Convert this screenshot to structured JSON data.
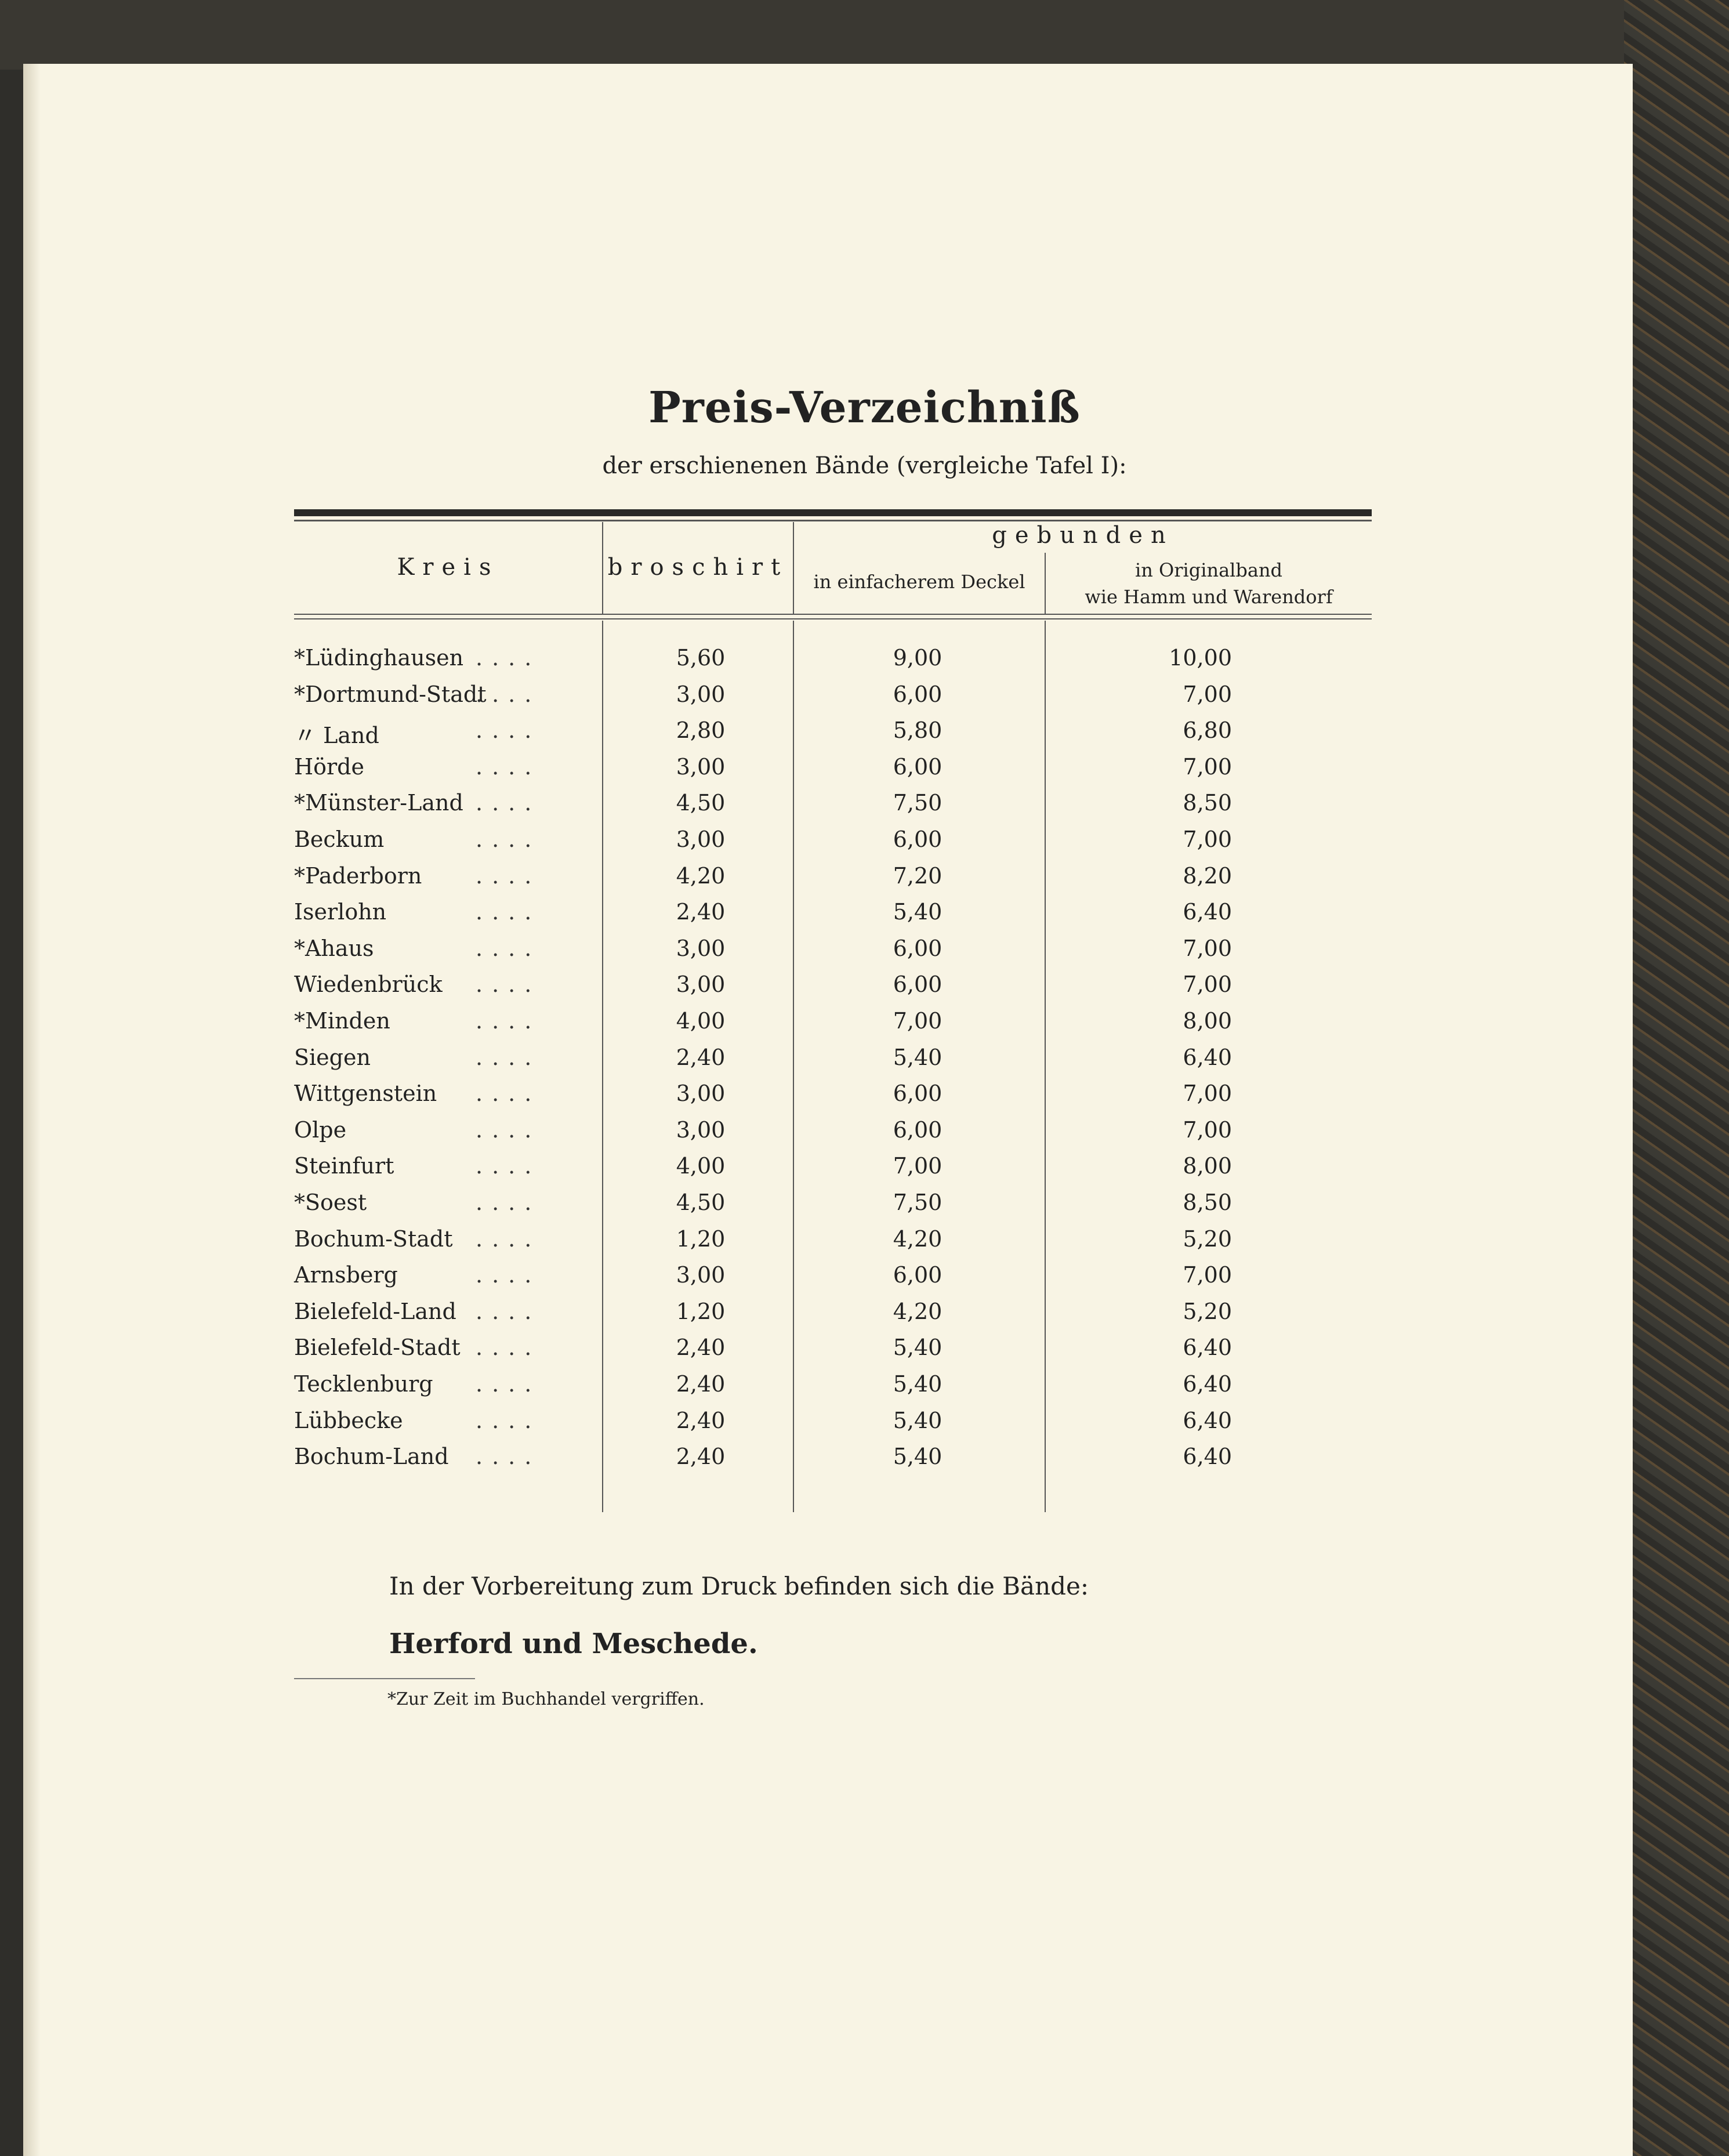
{
  "title": "Preis-Verzeichniß",
  "subtitle": "der erschienenen Bände (vergleiche Tafel I):",
  "table": {
    "headers": {
      "kreis": "Kreis",
      "broschirt": "broschirt",
      "gebunden": "gebunden",
      "einfach_line1": "in einfacherem Deckel",
      "original_line1": "in Originalband",
      "original_line2": "wie Hamm und Warendorf"
    },
    "rows": [
      {
        "kreis": "*Lüdinghausen",
        "broschirt": "5,60",
        "einfach": "9,00",
        "original": "10,00"
      },
      {
        "kreis": "*Dortmund-Stadt",
        "broschirt": "3,00",
        "einfach": "6,00",
        "original": "7,00"
      },
      {
        "kreis": "〃  Land",
        "broschirt": "2,80",
        "einfach": "5,80",
        "original": "6,80"
      },
      {
        "kreis": "Hörde",
        "broschirt": "3,00",
        "einfach": "6,00",
        "original": "7,00"
      },
      {
        "kreis": "*Münster-Land",
        "broschirt": "4,50",
        "einfach": "7,50",
        "original": "8,50"
      },
      {
        "kreis": "Beckum",
        "broschirt": "3,00",
        "einfach": "6,00",
        "original": "7,00"
      },
      {
        "kreis": "*Paderborn",
        "broschirt": "4,20",
        "einfach": "7,20",
        "original": "8,20"
      },
      {
        "kreis": "Iserlohn",
        "broschirt": "2,40",
        "einfach": "5,40",
        "original": "6,40"
      },
      {
        "kreis": "*Ahaus",
        "broschirt": "3,00",
        "einfach": "6,00",
        "original": "7,00"
      },
      {
        "kreis": "Wiedenbrück",
        "broschirt": "3,00",
        "einfach": "6,00",
        "original": "7,00"
      },
      {
        "kreis": "*Minden",
        "broschirt": "4,00",
        "einfach": "7,00",
        "original": "8,00"
      },
      {
        "kreis": "Siegen",
        "broschirt": "2,40",
        "einfach": "5,40",
        "original": "6,40"
      },
      {
        "kreis": "Wittgenstein",
        "broschirt": "3,00",
        "einfach": "6,00",
        "original": "7,00"
      },
      {
        "kreis": "Olpe",
        "broschirt": "3,00",
        "einfach": "6,00",
        "original": "7,00"
      },
      {
        "kreis": "Steinfurt",
        "broschirt": "4,00",
        "einfach": "7,00",
        "original": "8,00"
      },
      {
        "kreis": "*Soest",
        "broschirt": "4,50",
        "einfach": "7,50",
        "original": "8,50"
      },
      {
        "kreis": "Bochum-Stadt",
        "broschirt": "1,20",
        "einfach": "4,20",
        "original": "5,20"
      },
      {
        "kreis": "Arnsberg",
        "broschirt": "3,00",
        "einfach": "6,00",
        "original": "7,00"
      },
      {
        "kreis": "Bielefeld-Land",
        "broschirt": "1,20",
        "einfach": "4,20",
        "original": "5,20"
      },
      {
        "kreis": "Bielefeld-Stadt",
        "broschirt": "2,40",
        "einfach": "5,40",
        "original": "6,40"
      },
      {
        "kreis": "Tecklenburg",
        "broschirt": "2,40",
        "einfach": "5,40",
        "original": "6,40"
      },
      {
        "kreis": "Lübbecke",
        "broschirt": "2,40",
        "einfach": "5,40",
        "original": "6,40"
      },
      {
        "kreis": "Bochum-Land",
        "broschirt": "2,40",
        "einfach": "5,40",
        "original": "6,40"
      }
    ]
  },
  "preparation_note": "In der Vorbereitung zum Druck befinden sich die Bände:",
  "preparation_volumes": "Herford und Meschede.",
  "footnote": "*Zur Zeit im Buchhandel vergriffen."
}
